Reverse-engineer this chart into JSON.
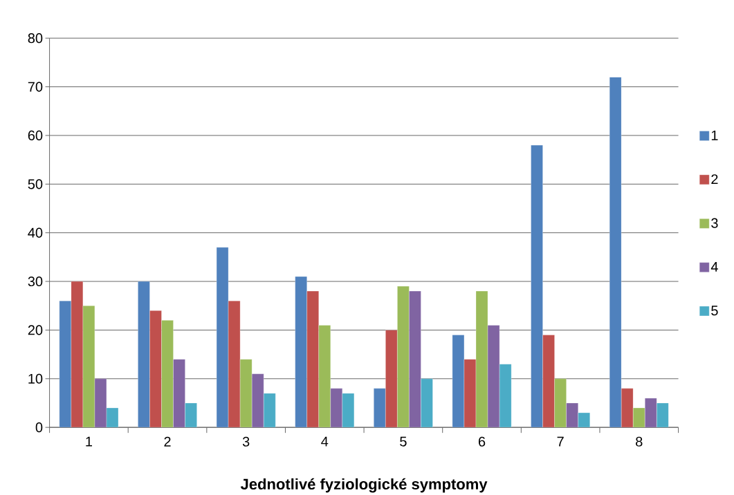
{
  "chart_data": {
    "type": "bar",
    "xlabel": "Jednotlivé fyziologické symptomy",
    "categories": [
      "1",
      "2",
      "3",
      "4",
      "5",
      "6",
      "7",
      "8"
    ],
    "series": [
      {
        "name": "1",
        "color": "#4f81bd",
        "values": [
          26,
          30,
          37,
          31,
          8,
          19,
          58,
          72
        ]
      },
      {
        "name": "2",
        "color": "#c0504d",
        "values": [
          30,
          24,
          26,
          28,
          20,
          14,
          19,
          8
        ]
      },
      {
        "name": "3",
        "color": "#9bbb59",
        "values": [
          25,
          22,
          14,
          21,
          29,
          28,
          10,
          4
        ]
      },
      {
        "name": "4",
        "color": "#8064a2",
        "values": [
          10,
          14,
          11,
          8,
          28,
          21,
          5,
          6
        ]
      },
      {
        "name": "5",
        "color": "#4bacc6",
        "values": [
          4,
          5,
          7,
          7,
          10,
          13,
          3,
          5
        ]
      }
    ],
    "ylim": [
      0,
      80
    ],
    "yticks": [
      0,
      10,
      20,
      30,
      40,
      50,
      60,
      70,
      80
    ],
    "grid": "y",
    "legend": "right"
  }
}
